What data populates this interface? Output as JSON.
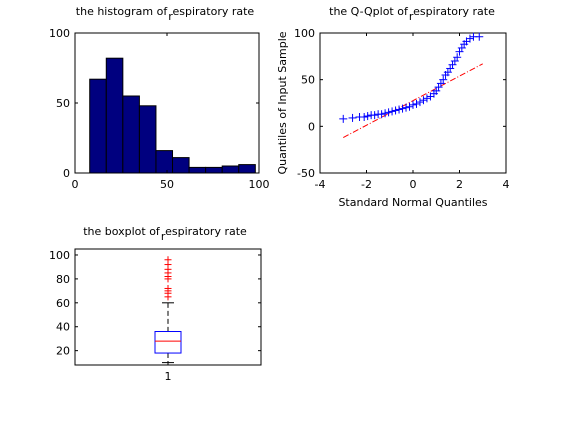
{
  "chart_data": [
    {
      "type": "bar",
      "title": "the histogram of respiratory rate",
      "title_main": "the histogram of",
      "title_sub": "r",
      "title_tail": "espiratory rate",
      "xlabel": "",
      "ylabel": "",
      "xlim": [
        0,
        100
      ],
      "ylim": [
        0,
        100
      ],
      "xticks": [
        "0",
        "50",
        "100"
      ],
      "yticks": [
        "0",
        "50",
        "100"
      ],
      "bin_edges": [
        8,
        17,
        26,
        35,
        44,
        53,
        62,
        71,
        80,
        89,
        98
      ],
      "values": [
        67,
        82,
        55,
        48,
        16,
        11,
        4,
        4,
        5,
        6
      ],
      "bar_color": "#00007f"
    },
    {
      "type": "scatter",
      "title": "the Q-Qplot of respiratory rate",
      "title_main": "the Q-Qplot of",
      "title_sub": "r",
      "title_tail": "espiratory rate",
      "xlabel": "Standard Normal Quantiles",
      "ylabel": "Quantiles of Input Sample",
      "xlim": [
        -4,
        4
      ],
      "ylim": [
        -50,
        100
      ],
      "xticks": [
        "-4",
        "-2",
        "0",
        "2",
        "4"
      ],
      "yticks": [
        "-50",
        "0",
        "50",
        "100"
      ],
      "marker": "+",
      "marker_color": "#0000ff",
      "points": [
        {
          "x": -3.0,
          "y": 8
        },
        {
          "x": -2.6,
          "y": 9
        },
        {
          "x": -2.3,
          "y": 10
        },
        {
          "x": -2.1,
          "y": 10
        },
        {
          "x": -1.95,
          "y": 11
        },
        {
          "x": -1.8,
          "y": 12
        },
        {
          "x": -1.65,
          "y": 12
        },
        {
          "x": -1.5,
          "y": 13
        },
        {
          "x": -1.35,
          "y": 13
        },
        {
          "x": -1.2,
          "y": 14
        },
        {
          "x": -1.05,
          "y": 15
        },
        {
          "x": -0.9,
          "y": 16
        },
        {
          "x": -0.75,
          "y": 17
        },
        {
          "x": -0.6,
          "y": 18
        },
        {
          "x": -0.45,
          "y": 19
        },
        {
          "x": -0.3,
          "y": 20
        },
        {
          "x": -0.15,
          "y": 21
        },
        {
          "x": 0.0,
          "y": 23
        },
        {
          "x": 0.15,
          "y": 24
        },
        {
          "x": 0.3,
          "y": 26
        },
        {
          "x": 0.45,
          "y": 28
        },
        {
          "x": 0.6,
          "y": 30
        },
        {
          "x": 0.75,
          "y": 32
        },
        {
          "x": 0.9,
          "y": 35
        },
        {
          "x": 1.0,
          "y": 38
        },
        {
          "x": 1.1,
          "y": 42
        },
        {
          "x": 1.2,
          "y": 46
        },
        {
          "x": 1.3,
          "y": 50
        },
        {
          "x": 1.4,
          "y": 55
        },
        {
          "x": 1.5,
          "y": 58
        },
        {
          "x": 1.6,
          "y": 62
        },
        {
          "x": 1.7,
          "y": 66
        },
        {
          "x": 1.8,
          "y": 70
        },
        {
          "x": 1.9,
          "y": 74
        },
        {
          "x": 2.0,
          "y": 80
        },
        {
          "x": 2.1,
          "y": 84
        },
        {
          "x": 2.2,
          "y": 88
        },
        {
          "x": 2.3,
          "y": 91
        },
        {
          "x": 2.45,
          "y": 94
        },
        {
          "x": 2.6,
          "y": 96
        },
        {
          "x": 2.85,
          "y": 96
        }
      ],
      "ref_line": {
        "x": [
          -3,
          3
        ],
        "y": [
          -12,
          67
        ],
        "color": "#ff0000",
        "style": "dash-dot"
      }
    },
    {
      "type": "boxplot",
      "title": "the boxplot of respiratory rate",
      "title_main": "the boxplot of",
      "title_sub": "r",
      "title_tail": "espiratory rate",
      "xlabel": "",
      "ylabel": "",
      "ylim": [
        8,
        105
      ],
      "yticks": [
        "20",
        "40",
        "60",
        "80",
        "100"
      ],
      "xticks": [
        "1"
      ],
      "stats": {
        "whisker_low": 10,
        "q1": 18,
        "median": 28,
        "q3": 36,
        "whisker_high": 60
      },
      "outliers": [
        65,
        68,
        70,
        72,
        80,
        82,
        85,
        88,
        92,
        96
      ],
      "box_color": "#0000ff",
      "median_color": "#ff0000",
      "outlier_color": "#ff0000"
    }
  ]
}
